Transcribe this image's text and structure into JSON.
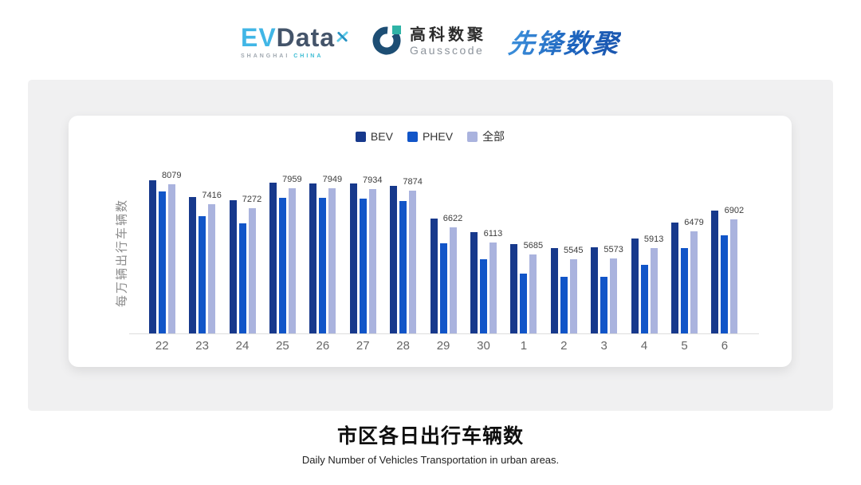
{
  "header": {
    "evdata": {
      "ev": "EV",
      "data_word": "Data",
      "sub_1": "SHANGHAI ",
      "sub_2": "CHINA"
    },
    "gausscode": {
      "name_cn": "高科数聚",
      "name_en": "Gausscode"
    },
    "pioneer": {
      "name": "先锋数聚"
    }
  },
  "chart_data": {
    "type": "bar",
    "title": "市区各日出行车辆数",
    "subtitle": "Daily Number of Vehicles Transportation in urban areas.",
    "ylabel": "每万辆出行车辆数",
    "xlabel": "",
    "categories": [
      "22",
      "23",
      "24",
      "25",
      "26",
      "27",
      "28",
      "29",
      "30",
      "1",
      "2",
      "3",
      "4",
      "5",
      "6"
    ],
    "series": [
      {
        "name": "BEV",
        "color": "#17398C",
        "values": [
          8230,
          7650,
          7560,
          8140,
          8130,
          8120,
          8040,
          6930,
          6470,
          6050,
          5910,
          5930,
          6240,
          6790,
          7180
        ]
      },
      {
        "name": "PHEV",
        "color": "#1155C8",
        "values": [
          7850,
          7000,
          6770,
          7630,
          7620,
          7590,
          7530,
          6070,
          5530,
          5030,
          4940,
          4920,
          5330,
          5910,
          6360
        ]
      },
      {
        "name": "全部",
        "color": "#AAB3DE",
        "data_labels_shown": true,
        "values": [
          8079,
          7416,
          7272,
          7959,
          7949,
          7934,
          7874,
          6622,
          6113,
          5685,
          5545,
          5573,
          5913,
          6479,
          6902
        ]
      }
    ],
    "ylim": [
      3000,
      8500
    ],
    "legend_position": "top",
    "grid": false
  }
}
